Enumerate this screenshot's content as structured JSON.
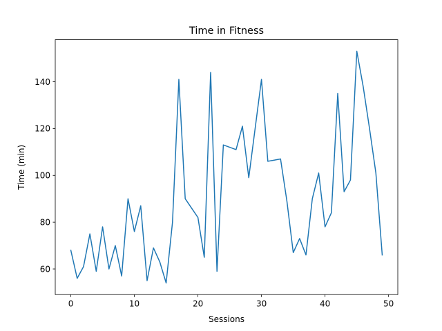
{
  "chart_data": {
    "type": "line",
    "title": "Time in Fitness",
    "xlabel": "Sessions",
    "ylabel": "Time (min)",
    "xlim": [
      -2.45,
      51.45
    ],
    "ylim": [
      49.05,
      157.95
    ],
    "xticks": [
      0,
      10,
      20,
      30,
      40,
      50
    ],
    "yticks": [
      60,
      80,
      100,
      120,
      140
    ],
    "grid": false,
    "color": "#1f77b4",
    "series": [
      {
        "x": [
          0,
          1,
          2,
          3,
          4,
          5,
          6,
          7,
          8,
          9,
          10,
          11,
          12,
          13,
          14,
          15,
          16,
          17,
          18,
          19,
          20,
          21,
          22,
          23,
          24,
          25,
          26,
          27,
          28,
          29,
          30,
          31,
          32,
          33,
          34,
          35,
          36,
          37,
          38,
          39,
          40,
          41,
          42,
          43,
          44,
          45,
          46,
          47,
          48,
          49
        ],
        "values": [
          68,
          56,
          61,
          75,
          59,
          78,
          60,
          70,
          57,
          90,
          76,
          87,
          55,
          69,
          63,
          54,
          80,
          141,
          90,
          86,
          82,
          65,
          144,
          59,
          113,
          112,
          111,
          121,
          99,
          120,
          141,
          106,
          106.5,
          107,
          89,
          67,
          73,
          66,
          90,
          101,
          78,
          84,
          135,
          93,
          98,
          153,
          138,
          120,
          101,
          66
        ]
      }
    ]
  }
}
